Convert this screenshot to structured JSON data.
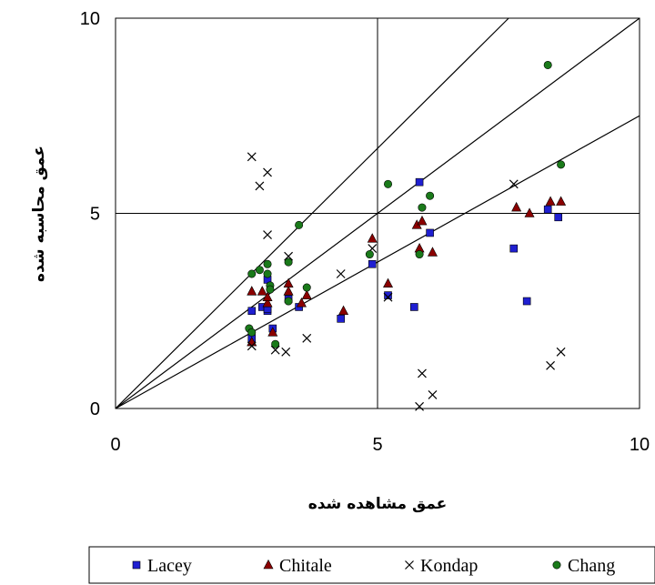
{
  "chart_data": {
    "type": "scatter",
    "title": "",
    "xlabel": "عمق مشاهده شده",
    "ylabel": "عمق محاسبه شده",
    "xlim": [
      0,
      10
    ],
    "ylim": [
      0,
      10
    ],
    "x_ticks": [
      "0",
      "5",
      "10"
    ],
    "y_ticks": [
      "0",
      "5",
      "10"
    ],
    "grid": true,
    "legend": "bottom",
    "reference_lines": [
      {
        "slope": 1.333
      },
      {
        "slope": 1.0
      },
      {
        "slope": 0.75
      }
    ],
    "series": [
      {
        "name": "Lacey",
        "marker": "square",
        "color": "#1f1fd1",
        "points": [
          [
            2.6,
            1.8
          ],
          [
            2.6,
            2.5
          ],
          [
            2.8,
            2.6
          ],
          [
            2.9,
            2.5
          ],
          [
            2.9,
            2.55
          ],
          [
            2.9,
            3.3
          ],
          [
            3.0,
            2.05
          ],
          [
            3.3,
            2.8
          ],
          [
            3.5,
            2.6
          ],
          [
            4.3,
            2.3
          ],
          [
            4.9,
            3.7
          ],
          [
            5.2,
            2.9
          ],
          [
            5.7,
            2.6
          ],
          [
            5.8,
            5.8
          ],
          [
            6.0,
            4.5
          ],
          [
            7.6,
            4.1
          ],
          [
            7.85,
            2.75
          ],
          [
            8.25,
            5.1
          ],
          [
            8.45,
            4.9
          ]
        ]
      },
      {
        "name": "Chitale",
        "marker": "triangle",
        "color": "#8b0000",
        "points": [
          [
            2.6,
            1.7
          ],
          [
            2.6,
            3.0
          ],
          [
            2.8,
            3.0
          ],
          [
            2.9,
            2.7
          ],
          [
            2.9,
            2.85
          ],
          [
            3.0,
            1.95
          ],
          [
            3.3,
            3.0
          ],
          [
            3.3,
            3.2
          ],
          [
            3.55,
            2.7
          ],
          [
            3.65,
            2.9
          ],
          [
            4.35,
            2.5
          ],
          [
            4.9,
            4.35
          ],
          [
            5.2,
            3.2
          ],
          [
            5.75,
            4.7
          ],
          [
            5.8,
            4.1
          ],
          [
            5.85,
            4.8
          ],
          [
            6.05,
            4.0
          ],
          [
            7.65,
            5.15
          ],
          [
            7.9,
            5.0
          ],
          [
            8.3,
            5.3
          ],
          [
            8.5,
            5.3
          ]
        ]
      },
      {
        "name": "Kondap",
        "marker": "x",
        "color": "#000000",
        "points": [
          [
            2.6,
            1.6
          ],
          [
            2.6,
            6.45
          ],
          [
            2.75,
            5.7
          ],
          [
            2.9,
            4.45
          ],
          [
            2.9,
            6.05
          ],
          [
            3.05,
            1.5
          ],
          [
            3.25,
            1.45
          ],
          [
            3.3,
            3.9
          ],
          [
            3.65,
            1.8
          ],
          [
            4.3,
            3.45
          ],
          [
            4.9,
            4.1
          ],
          [
            5.2,
            2.85
          ],
          [
            5.8,
            0.05
          ],
          [
            5.85,
            0.9
          ],
          [
            6.05,
            0.35
          ],
          [
            7.6,
            5.75
          ],
          [
            8.3,
            1.1
          ],
          [
            8.5,
            1.45
          ]
        ]
      },
      {
        "name": "Chang",
        "marker": "circle",
        "color": "#1a7a1a",
        "points": [
          [
            2.55,
            2.05
          ],
          [
            2.6,
            1.95
          ],
          [
            2.6,
            3.45
          ],
          [
            2.75,
            3.55
          ],
          [
            2.9,
            3.45
          ],
          [
            2.9,
            3.7
          ],
          [
            2.95,
            3.15
          ],
          [
            2.95,
            3.05
          ],
          [
            3.05,
            1.65
          ],
          [
            3.3,
            2.75
          ],
          [
            3.3,
            3.75
          ],
          [
            3.5,
            4.7
          ],
          [
            3.65,
            3.1
          ],
          [
            4.85,
            3.95
          ],
          [
            5.2,
            5.75
          ],
          [
            5.8,
            3.95
          ],
          [
            5.85,
            5.15
          ],
          [
            6.0,
            5.45
          ],
          [
            8.25,
            8.8
          ],
          [
            8.5,
            6.25
          ]
        ]
      }
    ]
  }
}
